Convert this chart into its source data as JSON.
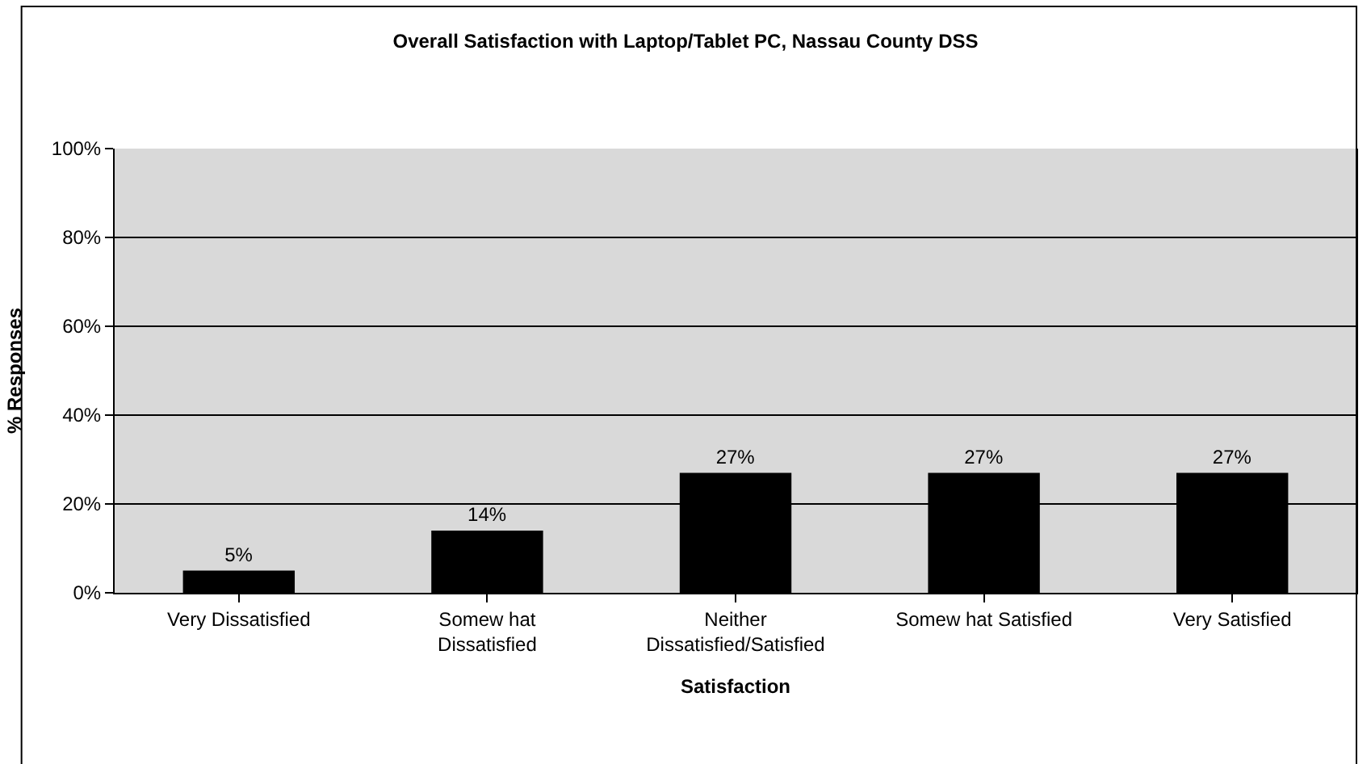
{
  "chart_data": {
    "type": "bar",
    "title": "Overall Satisfaction with Laptop/Tablet PC, Nassau County DSS",
    "xlabel": "Satisfaction",
    "ylabel": "% Responses",
    "categories": [
      "Very Dissatisfied",
      "Somew hat\nDissatisfied",
      "Neither\nDissatisfied/Satisfied",
      "Somew hat Satisfied",
      "Very Satisfied"
    ],
    "values": [
      5,
      14,
      27,
      27,
      27
    ],
    "value_labels": [
      "5%",
      "14%",
      "27%",
      "27%",
      "27%"
    ],
    "color": "#000000",
    "ylim": [
      0,
      100
    ],
    "yticks": [
      {
        "value": 0,
        "label": "0%"
      },
      {
        "value": 20,
        "label": "20%"
      },
      {
        "value": 40,
        "label": "40%"
      },
      {
        "value": 60,
        "label": "60%"
      },
      {
        "value": 80,
        "label": "80%"
      },
      {
        "value": 100,
        "label": "100%"
      }
    ],
    "grid": "y",
    "legend": false
  }
}
